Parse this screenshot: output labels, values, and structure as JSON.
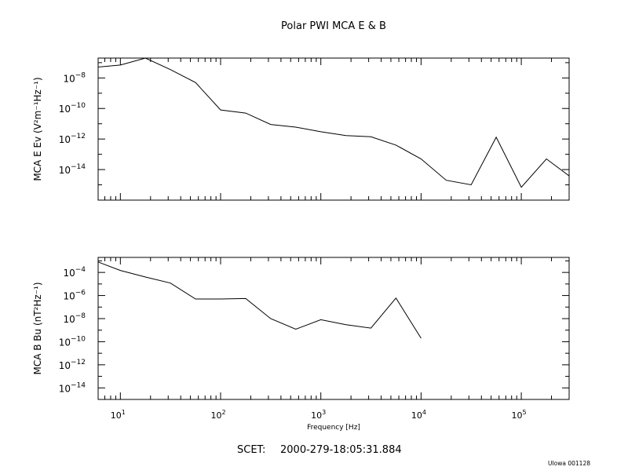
{
  "title": "Polar PWI MCA E & B",
  "footer": {
    "scet_label": "SCET:",
    "scet_value": "2000-279-18:05:31.884",
    "credit": "UIowa 001128"
  },
  "chart_data": [
    {
      "type": "line",
      "ylabel": "MCA E Ev (V²m⁻¹Hz⁻¹)",
      "xlabel": "",
      "xscale": "log",
      "yscale": "log",
      "xlim": [
        6,
        300000
      ],
      "ylim": [
        1e-16,
        2e-07
      ],
      "y_ticks_major": [
        {
          "value": 1e-08,
          "mant": "10",
          "exp": "−8"
        },
        {
          "value": 1e-10,
          "mant": "10",
          "exp": "−10"
        },
        {
          "value": 1e-12,
          "mant": "10",
          "exp": "−12"
        },
        {
          "value": 1e-14,
          "mant": "10",
          "exp": "−14"
        }
      ],
      "x_tick_labels": [],
      "series": [
        {
          "x": [
            5.6,
            10,
            17.8,
            31.6,
            56.2,
            100,
            178,
            316,
            562,
            1000,
            1780,
            3160,
            5620,
            10000,
            17800,
            31600,
            56200,
            100000,
            178000,
            316000
          ],
          "y": [
            5e-08,
            7e-08,
            2e-07,
            3.5e-08,
            5e-09,
            8e-11,
            5e-11,
            9e-12,
            6e-12,
            3e-12,
            1.7e-12,
            1.4e-12,
            4e-13,
            5e-14,
            2e-15,
            1e-15,
            1.3e-12,
            7e-16,
            5e-14,
            3e-15
          ]
        }
      ]
    },
    {
      "type": "line",
      "ylabel": "MCA B Bu (nT²Hz⁻¹)",
      "xlabel": "Frequency [Hz]",
      "xscale": "log",
      "yscale": "log",
      "xlim": [
        6,
        300000
      ],
      "ylim": [
        1e-15,
        0.002
      ],
      "y_ticks_major": [
        {
          "value": 0.0001,
          "mant": "10",
          "exp": "−4"
        },
        {
          "value": 1e-06,
          "mant": "10",
          "exp": "−6"
        },
        {
          "value": 1e-08,
          "mant": "10",
          "exp": "−8"
        },
        {
          "value": 1e-10,
          "mant": "10",
          "exp": "−10"
        },
        {
          "value": 1e-12,
          "mant": "10",
          "exp": "−12"
        },
        {
          "value": 1e-14,
          "mant": "10",
          "exp": "−14"
        }
      ],
      "x_tick_labels": [
        {
          "value": 10,
          "mant": "10",
          "exp": "1"
        },
        {
          "value": 100,
          "mant": "10",
          "exp": "2"
        },
        {
          "value": 1000,
          "mant": "10",
          "exp": "3"
        },
        {
          "value": 10000,
          "mant": "10",
          "exp": "4"
        },
        {
          "value": 100000,
          "mant": "10",
          "exp": "5"
        }
      ],
      "series": [
        {
          "x": [
            5.6,
            10,
            17.8,
            31.6,
            56.2,
            100,
            178,
            316,
            562,
            1000,
            1780,
            3160,
            5620,
            10000
          ],
          "y": [
            0.001,
            0.00015,
            4e-05,
            1.2e-05,
            5e-07,
            5e-07,
            5.5e-07,
            1e-08,
            1.2e-09,
            8e-09,
            3e-09,
            1.5e-09,
            6e-07,
            2e-10
          ]
        }
      ]
    }
  ]
}
